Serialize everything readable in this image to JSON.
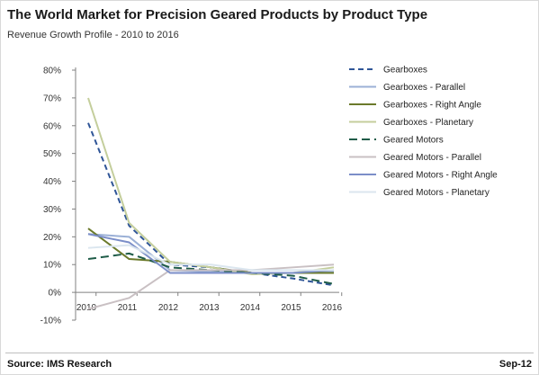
{
  "title": "The World Market for Precision Geared Products by Product Type",
  "subtitle": "Revenue Growth Profile - 2010 to 2016",
  "source": "Source: IMS Research",
  "date": "Sep-12",
  "chart_data": {
    "type": "line",
    "x": [
      "2010",
      "2011",
      "2012",
      "2013",
      "2014",
      "2015",
      "2016"
    ],
    "ylim": [
      -0.1,
      0.8
    ],
    "yticks": [
      "-10%",
      "0%",
      "10%",
      "20%",
      "30%",
      "40%",
      "50%",
      "60%",
      "70%",
      "80%"
    ],
    "grid": false,
    "legend_position": "right",
    "series": [
      {
        "name": "Gearboxes",
        "color": "#2f5597",
        "dash": "6,4",
        "width": 2,
        "values": [
          0.61,
          0.24,
          0.1,
          0.09,
          0.07,
          0.05,
          0.025
        ]
      },
      {
        "name": "Gearboxes - Parallel",
        "color": "#9bb0d6",
        "dash": "",
        "width": 2,
        "values": [
          0.21,
          0.2,
          0.08,
          0.075,
          0.07,
          0.07,
          0.075
        ]
      },
      {
        "name": "Gearboxes - Right Angle",
        "color": "#6b7a2b",
        "dash": "",
        "width": 2,
        "values": [
          0.23,
          0.12,
          0.11,
          0.09,
          0.07,
          0.07,
          0.07
        ]
      },
      {
        "name": "Gearboxes - Planetary",
        "color": "#c4ce9c",
        "dash": "",
        "width": 2,
        "values": [
          0.7,
          0.25,
          0.11,
          0.09,
          0.065,
          0.07,
          0.09
        ]
      },
      {
        "name": "Geared Motors",
        "color": "#1f5c48",
        "dash": "9,5",
        "width": 2,
        "values": [
          0.12,
          0.14,
          0.09,
          0.08,
          0.07,
          0.06,
          0.03
        ]
      },
      {
        "name": "Geared Motors - Parallel",
        "color": "#c9c0c3",
        "dash": "",
        "width": 2,
        "values": [
          -0.06,
          -0.02,
          0.08,
          0.08,
          0.08,
          0.09,
          0.1
        ]
      },
      {
        "name": "Geared Motors - Right Angle",
        "color": "#7b8ec8",
        "dash": "",
        "width": 2,
        "values": [
          0.21,
          0.18,
          0.07,
          0.07,
          0.07,
          0.07,
          0.08
        ]
      },
      {
        "name": "Geared Motors - Planetary",
        "color": "#dbe6ef",
        "dash": "",
        "width": 2,
        "values": [
          0.16,
          0.17,
          0.1,
          0.1,
          0.08,
          0.08,
          0.08
        ]
      }
    ]
  }
}
